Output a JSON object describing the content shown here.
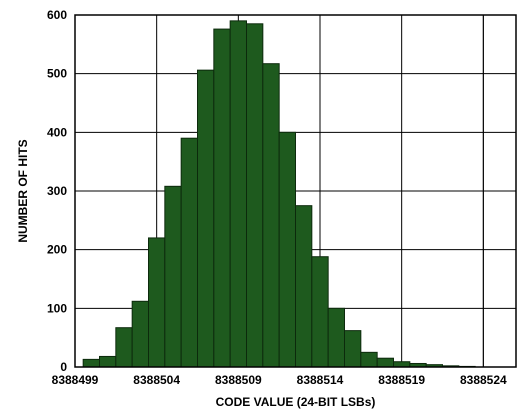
{
  "chart_data": {
    "type": "bar",
    "title": "",
    "xlabel": "CODE VALUE (24-BIT LSBs)",
    "ylabel": "NUMBER OF HITS",
    "x_ticks": [
      "8388499",
      "8388504",
      "8388509",
      "8388514",
      "8388519",
      "8388524"
    ],
    "y_ticks": [
      "0",
      "100",
      "200",
      "300",
      "400",
      "500",
      "600"
    ],
    "xlim": [
      8388499,
      8388526
    ],
    "ylim": [
      0,
      600
    ],
    "grid": true,
    "bar_color": "#1e5a1e",
    "bar_edge_color": "#0c2a0c",
    "categories": [
      8388500,
      8388501,
      8388502,
      8388503,
      8388504,
      8388505,
      8388506,
      8388507,
      8388508,
      8388509,
      8388510,
      8388511,
      8388512,
      8388513,
      8388514,
      8388515,
      8388516,
      8388517,
      8388518,
      8388519,
      8388520,
      8388521,
      8388522,
      8388523
    ],
    "values": [
      13,
      18,
      67,
      112,
      220,
      308,
      390,
      506,
      576,
      590,
      585,
      517,
      400,
      275,
      188,
      100,
      62,
      25,
      15,
      9,
      6,
      4,
      2,
      1
    ]
  }
}
